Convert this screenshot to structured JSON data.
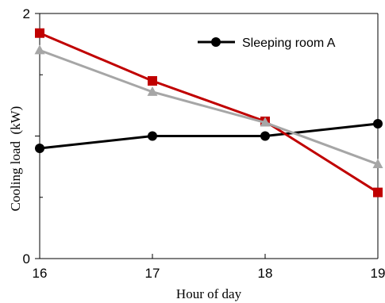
{
  "chart_data": {
    "type": "line",
    "xlabel": "Hour of day",
    "ylabel": "Cooling load  (kW)",
    "x": [
      16,
      17,
      18,
      19
    ],
    "xlim": [
      16,
      19
    ],
    "ylim": [
      0,
      2
    ],
    "y_ticks": [
      0,
      1,
      2
    ],
    "y_tick_labels": [
      "0",
      "",
      "2"
    ],
    "x_tick_labels": [
      "16",
      "17",
      "18",
      "19"
    ],
    "grid": false,
    "legend_position": "top-right",
    "series": [
      {
        "name": "Sleeping room A",
        "color": "#000000",
        "marker": "circle",
        "values": [
          0.9,
          1.0,
          1.0,
          1.1
        ]
      },
      {
        "name": "",
        "color": "#c00000",
        "marker": "square",
        "values": [
          1.84,
          1.45,
          1.12,
          0.54
        ]
      },
      {
        "name": "",
        "color": "#a6a6a6",
        "marker": "triangle",
        "values": [
          1.7,
          1.36,
          1.11,
          0.77
        ]
      }
    ]
  }
}
